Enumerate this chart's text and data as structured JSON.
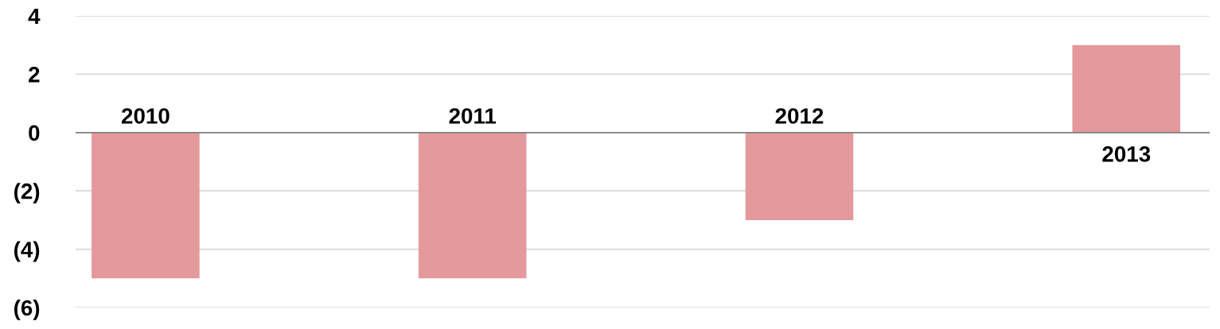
{
  "chart_data": {
    "type": "bar",
    "categories": [
      "2010",
      "2011",
      "2012",
      "2013"
    ],
    "values": [
      -5,
      -5,
      -3,
      3
    ],
    "color": "#e4999c",
    "ylim": [
      -6,
      4
    ],
    "yticks": [
      {
        "value": -6,
        "label": "(6)"
      },
      {
        "value": -4,
        "label": "(4)"
      },
      {
        "value": -2,
        "label": "(2)"
      },
      0,
      2,
      4
    ],
    "grid": "y"
  }
}
